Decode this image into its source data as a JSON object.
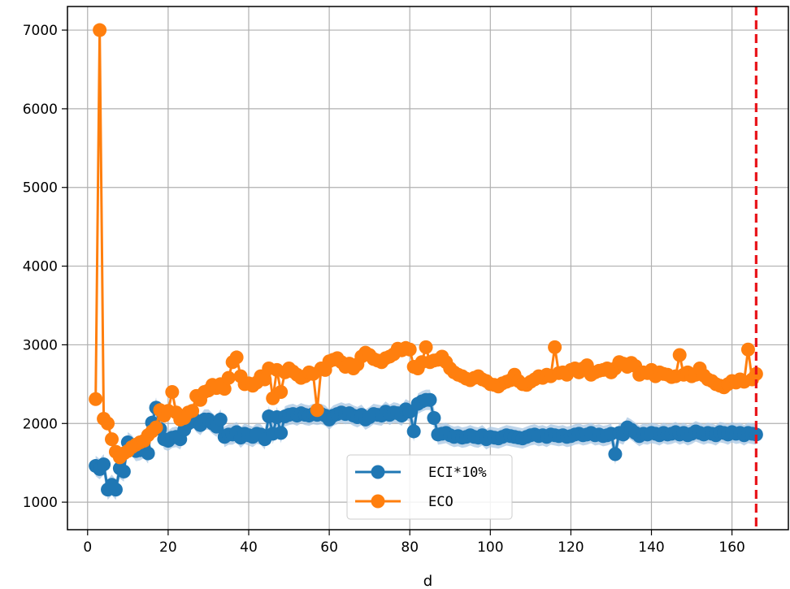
{
  "chart_data": {
    "type": "line",
    "xlabel": "d",
    "ylabel": "",
    "xlim": [
      -5,
      174
    ],
    "ylim": [
      650,
      7300
    ],
    "x_ticks": [
      0,
      20,
      40,
      60,
      80,
      100,
      120,
      140,
      160
    ],
    "y_ticks": [
      1000,
      2000,
      3000,
      4000,
      5000,
      6000,
      7000
    ],
    "grid": true,
    "legend_position": "lower-center",
    "vertical_line": {
      "x": 166,
      "color": "#e8141a",
      "style": "dashed"
    },
    "series": [
      {
        "name": "ECI*10%",
        "color": "#1f77b4",
        "band_color": "#a9c7e3",
        "marker": "circle",
        "x": [
          2,
          3,
          4,
          5,
          6,
          7,
          8,
          9,
          10,
          11,
          12,
          13,
          14,
          15,
          16,
          17,
          18,
          19,
          20,
          21,
          22,
          23,
          24,
          25,
          26,
          27,
          28,
          29,
          30,
          31,
          32,
          33,
          34,
          35,
          36,
          37,
          38,
          39,
          40,
          41,
          42,
          43,
          44,
          45,
          46,
          47,
          48,
          49,
          50,
          51,
          52,
          53,
          54,
          55,
          56,
          57,
          58,
          59,
          60,
          61,
          62,
          63,
          64,
          65,
          66,
          67,
          68,
          69,
          70,
          71,
          72,
          73,
          74,
          75,
          76,
          77,
          78,
          79,
          80,
          81,
          82,
          83,
          84,
          85,
          86,
          87,
          88,
          89,
          90,
          91,
          92,
          93,
          94,
          95,
          96,
          97,
          98,
          99,
          100,
          101,
          102,
          103,
          104,
          105,
          106,
          107,
          108,
          109,
          110,
          111,
          112,
          113,
          114,
          115,
          116,
          117,
          118,
          119,
          120,
          121,
          122,
          123,
          124,
          125,
          126,
          127,
          128,
          129,
          130,
          131,
          132,
          133,
          134,
          135,
          136,
          137,
          138,
          139,
          140,
          141,
          142,
          143,
          144,
          145,
          146,
          147,
          148,
          149,
          150,
          151,
          152,
          153,
          154,
          155,
          156,
          157,
          158,
          159,
          160,
          161,
          162,
          163,
          164,
          165,
          166
        ],
        "values": [
          1460,
          1420,
          1480,
          1160,
          1220,
          1160,
          1430,
          1390,
          1760,
          1720,
          1650,
          1660,
          1690,
          1620,
          2010,
          2200,
          1930,
          1800,
          1780,
          1820,
          1830,
          1800,
          1920,
          2000,
          2090,
          2020,
          1980,
          2050,
          2050,
          2000,
          1960,
          2050,
          1830,
          1860,
          1860,
          1890,
          1820,
          1870,
          1850,
          1830,
          1870,
          1860,
          1800,
          2090,
          1870,
          2080,
          1880,
          2090,
          2110,
          2120,
          2100,
          2130,
          2110,
          2100,
          2120,
          2110,
          2120,
          2100,
          2050,
          2100,
          2120,
          2140,
          2120,
          2130,
          2100,
          2080,
          2110,
          2050,
          2080,
          2120,
          2110,
          2100,
          2150,
          2110,
          2140,
          2130,
          2100,
          2180,
          2150,
          1900,
          2250,
          2280,
          2300,
          2300,
          2070,
          1860,
          1870,
          1880,
          1850,
          1830,
          1840,
          1820,
          1830,
          1850,
          1830,
          1820,
          1850,
          1800,
          1830,
          1820,
          1810,
          1830,
          1850,
          1840,
          1830,
          1820,
          1810,
          1830,
          1850,
          1860,
          1840,
          1850,
          1830,
          1860,
          1850,
          1840,
          1850,
          1830,
          1840,
          1860,
          1870,
          1850,
          1860,
          1880,
          1850,
          1860,
          1840,
          1850,
          1870,
          1610,
          1880,
          1860,
          1950,
          1920,
          1880,
          1840,
          1870,
          1860,
          1880,
          1870,
          1850,
          1880,
          1860,
          1870,
          1890,
          1860,
          1880,
          1850,
          1870,
          1900,
          1880,
          1860,
          1880,
          1870,
          1850,
          1890,
          1880,
          1860,
          1890,
          1870,
          1880,
          1850,
          1880,
          1870,
          1860
        ],
        "band_halfwidth": 130
      },
      {
        "name": "ECO",
        "color": "#ff7f0e",
        "marker": "circle",
        "x": [
          2,
          3,
          4,
          5,
          6,
          7,
          8,
          9,
          10,
          11,
          12,
          13,
          14,
          15,
          16,
          17,
          18,
          19,
          20,
          21,
          22,
          23,
          24,
          25,
          26,
          27,
          28,
          29,
          30,
          31,
          32,
          33,
          34,
          35,
          36,
          37,
          38,
          39,
          40,
          41,
          42,
          43,
          44,
          45,
          46,
          47,
          48,
          49,
          50,
          51,
          52,
          53,
          54,
          55,
          56,
          57,
          58,
          59,
          60,
          61,
          62,
          63,
          64,
          65,
          66,
          67,
          68,
          69,
          70,
          71,
          72,
          73,
          74,
          75,
          76,
          77,
          78,
          79,
          80,
          81,
          82,
          83,
          84,
          85,
          86,
          87,
          88,
          89,
          90,
          91,
          92,
          93,
          94,
          95,
          96,
          97,
          98,
          99,
          100,
          101,
          102,
          103,
          104,
          105,
          106,
          107,
          108,
          109,
          110,
          111,
          112,
          113,
          114,
          115,
          116,
          117,
          118,
          119,
          120,
          121,
          122,
          123,
          124,
          125,
          126,
          127,
          128,
          129,
          130,
          131,
          132,
          133,
          134,
          135,
          136,
          137,
          138,
          139,
          140,
          141,
          142,
          143,
          144,
          145,
          146,
          147,
          148,
          149,
          150,
          151,
          152,
          153,
          154,
          155,
          156,
          157,
          158,
          159,
          160,
          161,
          162,
          163,
          164,
          165,
          166
        ],
        "values": [
          2310,
          7000,
          2060,
          2000,
          1800,
          1640,
          1570,
          1620,
          1650,
          1700,
          1730,
          1760,
          1780,
          1850,
          1900,
          1950,
          2170,
          2100,
          2160,
          2400,
          2140,
          2050,
          2070,
          2140,
          2160,
          2350,
          2300,
          2400,
          2420,
          2490,
          2450,
          2500,
          2440,
          2580,
          2780,
          2840,
          2600,
          2500,
          2510,
          2480,
          2520,
          2600,
          2560,
          2700,
          2320,
          2680,
          2400,
          2650,
          2700,
          2660,
          2620,
          2580,
          2600,
          2650,
          2630,
          2170,
          2700,
          2680,
          2790,
          2810,
          2830,
          2780,
          2720,
          2760,
          2700,
          2750,
          2850,
          2900,
          2870,
          2820,
          2800,
          2780,
          2830,
          2850,
          2880,
          2950,
          2930,
          2960,
          2940,
          2720,
          2700,
          2780,
          2970,
          2780,
          2800,
          2810,
          2850,
          2780,
          2700,
          2650,
          2620,
          2600,
          2570,
          2550,
          2580,
          2600,
          2560,
          2540,
          2500,
          2490,
          2470,
          2510,
          2530,
          2550,
          2620,
          2540,
          2500,
          2490,
          2530,
          2560,
          2600,
          2580,
          2620,
          2600,
          2970,
          2640,
          2650,
          2620,
          2680,
          2700,
          2650,
          2700,
          2740,
          2620,
          2650,
          2670,
          2680,
          2700,
          2650,
          2700,
          2780,
          2760,
          2720,
          2770,
          2730,
          2620,
          2650,
          2640,
          2680,
          2600,
          2650,
          2630,
          2620,
          2590,
          2600,
          2870,
          2620,
          2650,
          2600,
          2620,
          2700,
          2610,
          2560,
          2540,
          2500,
          2480,
          2460,
          2500,
          2540,
          2520,
          2560,
          2530,
          2940,
          2560,
          2630
        ]
      }
    ]
  }
}
